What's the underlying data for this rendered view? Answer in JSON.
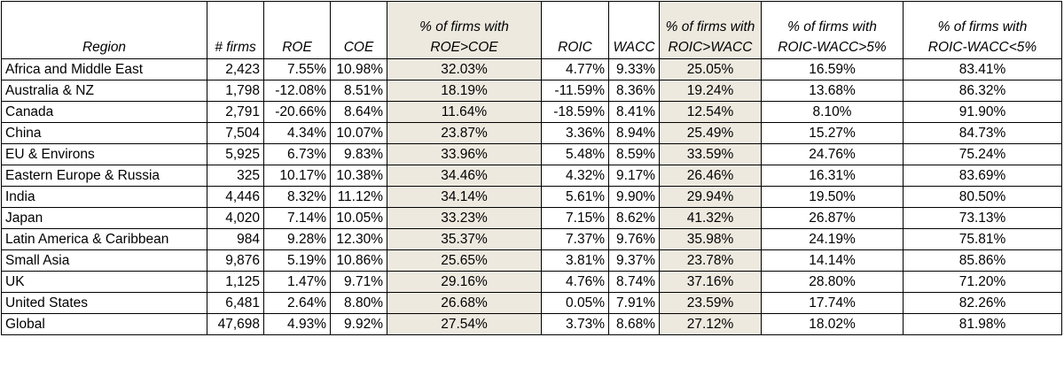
{
  "headers": {
    "region": "Region",
    "firms": "# firms",
    "roe": "ROE",
    "coe": "COE",
    "pct_roe_coe_1": "% of firms with",
    "pct_roe_coe_2": "ROE>COE",
    "roic": "ROIC",
    "wacc": "WACC",
    "pct_roic_wacc_1": "% of firms with",
    "pct_roic_wacc_2": "ROIC>WACC",
    "pct_gt5_1": "% of firms with",
    "pct_gt5_2": "ROIC-WACC>5%",
    "pct_lt5_1": "% of firms with",
    "pct_lt5_2": "ROIC-WACC<5%"
  },
  "rows": [
    {
      "region": "Africa and Middle East",
      "firms": "2,423",
      "roe": "7.55%",
      "coe": "10.98%",
      "pct_roe_coe": "32.03%",
      "roic": "4.77%",
      "wacc": "9.33%",
      "pct_roic_wacc": "25.05%",
      "pct_gt5": "16.59%",
      "pct_lt5": "83.41%"
    },
    {
      "region": "Australia & NZ",
      "firms": "1,798",
      "roe": "-12.08%",
      "coe": "8.51%",
      "pct_roe_coe": "18.19%",
      "roic": "-11.59%",
      "wacc": "8.36%",
      "pct_roic_wacc": "19.24%",
      "pct_gt5": "13.68%",
      "pct_lt5": "86.32%"
    },
    {
      "region": "Canada",
      "firms": "2,791",
      "roe": "-20.66%",
      "coe": "8.64%",
      "pct_roe_coe": "11.64%",
      "roic": "-18.59%",
      "wacc": "8.41%",
      "pct_roic_wacc": "12.54%",
      "pct_gt5": "8.10%",
      "pct_lt5": "91.90%"
    },
    {
      "region": "China",
      "firms": "7,504",
      "roe": "4.34%",
      "coe": "10.07%",
      "pct_roe_coe": "23.87%",
      "roic": "3.36%",
      "wacc": "8.94%",
      "pct_roic_wacc": "25.49%",
      "pct_gt5": "15.27%",
      "pct_lt5": "84.73%"
    },
    {
      "region": "EU & Environs",
      "firms": "5,925",
      "roe": "6.73%",
      "coe": "9.83%",
      "pct_roe_coe": "33.96%",
      "roic": "5.48%",
      "wacc": "8.59%",
      "pct_roic_wacc": "33.59%",
      "pct_gt5": "24.76%",
      "pct_lt5": "75.24%"
    },
    {
      "region": "Eastern Europe & Russia",
      "firms": "325",
      "roe": "10.17%",
      "coe": "10.38%",
      "pct_roe_coe": "34.46%",
      "roic": "4.32%",
      "wacc": "9.17%",
      "pct_roic_wacc": "26.46%",
      "pct_gt5": "16.31%",
      "pct_lt5": "83.69%"
    },
    {
      "region": "India",
      "firms": "4,446",
      "roe": "8.32%",
      "coe": "11.12%",
      "pct_roe_coe": "34.14%",
      "roic": "5.61%",
      "wacc": "9.90%",
      "pct_roic_wacc": "29.94%",
      "pct_gt5": "19.50%",
      "pct_lt5": "80.50%"
    },
    {
      "region": "Japan",
      "firms": "4,020",
      "roe": "7.14%",
      "coe": "10.05%",
      "pct_roe_coe": "33.23%",
      "roic": "7.15%",
      "wacc": "8.62%",
      "pct_roic_wacc": "41.32%",
      "pct_gt5": "26.87%",
      "pct_lt5": "73.13%"
    },
    {
      "region": "Latin America & Caribbean",
      "firms": "984",
      "roe": "9.28%",
      "coe": "12.30%",
      "pct_roe_coe": "35.37%",
      "roic": "7.37%",
      "wacc": "9.76%",
      "pct_roic_wacc": "35.98%",
      "pct_gt5": "24.19%",
      "pct_lt5": "75.81%"
    },
    {
      "region": "Small Asia",
      "firms": "9,876",
      "roe": "5.19%",
      "coe": "10.86%",
      "pct_roe_coe": "25.65%",
      "roic": "3.81%",
      "wacc": "9.37%",
      "pct_roic_wacc": "23.78%",
      "pct_gt5": "14.14%",
      "pct_lt5": "85.86%"
    },
    {
      "region": "UK",
      "firms": "1,125",
      "roe": "1.47%",
      "coe": "9.71%",
      "pct_roe_coe": "29.16%",
      "roic": "4.76%",
      "wacc": "8.74%",
      "pct_roic_wacc": "37.16%",
      "pct_gt5": "28.80%",
      "pct_lt5": "71.20%"
    },
    {
      "region": "United States",
      "firms": "6,481",
      "roe": "2.64%",
      "coe": "8.80%",
      "pct_roe_coe": "26.68%",
      "roic": "0.05%",
      "wacc": "7.91%",
      "pct_roic_wacc": "23.59%",
      "pct_gt5": "17.74%",
      "pct_lt5": "82.26%"
    },
    {
      "region": "Global",
      "firms": "47,698",
      "roe": "4.93%",
      "coe": "9.92%",
      "pct_roe_coe": "27.54%",
      "roic": "3.73%",
      "wacc": "8.68%",
      "pct_roic_wacc": "27.12%",
      "pct_gt5": "18.02%",
      "pct_lt5": "81.98%"
    }
  ]
}
